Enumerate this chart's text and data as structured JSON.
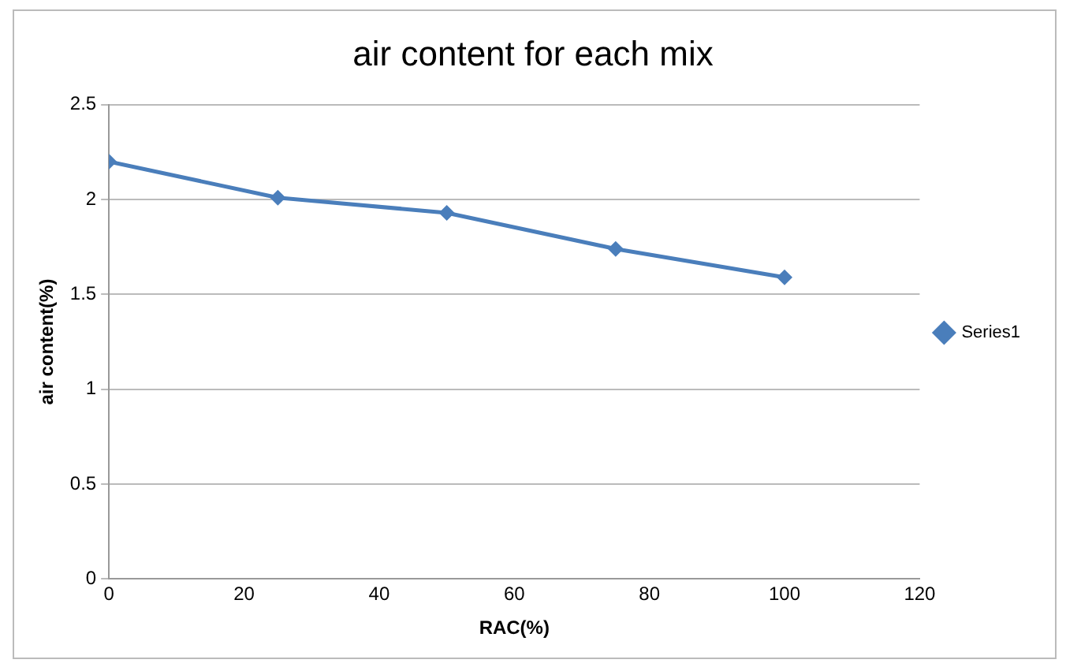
{
  "chart_data": {
    "type": "line",
    "title": "air content for each mix",
    "xlabel": "RAC(%)",
    "ylabel": "air content(%)",
    "x": [
      0,
      25,
      50,
      75,
      100
    ],
    "series": [
      {
        "name": "Series1",
        "color": "#4a7ebb",
        "values": [
          2.2,
          2.01,
          1.93,
          1.74,
          1.59
        ]
      }
    ],
    "xlim": [
      0,
      120
    ],
    "xticks": [
      0,
      20,
      40,
      60,
      80,
      100,
      120
    ],
    "ylim": [
      0,
      2.5
    ],
    "yticks": [
      0,
      0.5,
      1,
      1.5,
      2,
      2.5
    ],
    "grid": "y",
    "legend": "right",
    "marker": "diamond",
    "line_style": "solid"
  }
}
